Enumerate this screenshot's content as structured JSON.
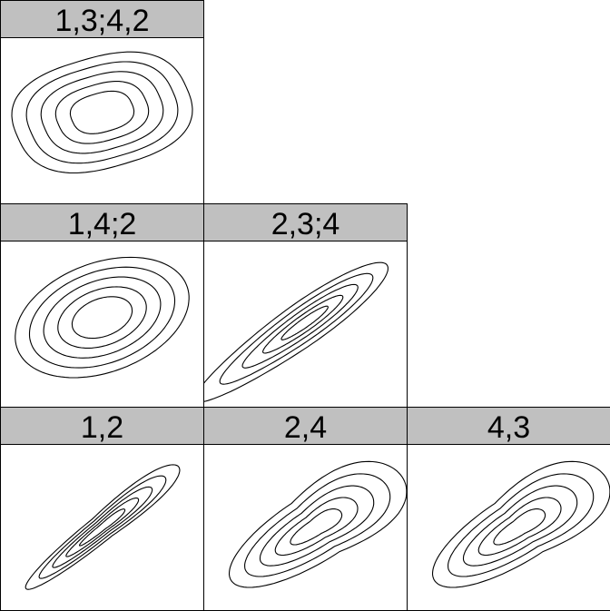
{
  "colors": {
    "strip": "#c0c0c0",
    "border": "#000000",
    "panel_background": "#ffffff",
    "contour": "#000000"
  },
  "chart_data": {
    "type": "contour",
    "arrangement": "lower-triangular panel grid, 3 rows, contours of bivariate densities",
    "contour_levels_per_panel": 5,
    "panels": [
      {
        "label": "1,3;4,2",
        "row": 1,
        "col": 1,
        "shape": "rounded-square",
        "correlation": 0.3,
        "tail": "symmetric"
      },
      {
        "label": "1,4;2",
        "row": 2,
        "col": 1,
        "shape": "ellipse",
        "correlation": 0.4,
        "tail": "symmetric"
      },
      {
        "label": "2,3;4",
        "row": 2,
        "col": 2,
        "shape": "narrow-ellipse",
        "correlation": 0.85,
        "tail": "lower"
      },
      {
        "label": "1,2",
        "row": 3,
        "col": 1,
        "shape": "teardrop",
        "correlation": 0.9,
        "tail": "lower"
      },
      {
        "label": "2,4",
        "row": 3,
        "col": 2,
        "shape": "teardrop",
        "correlation": 0.6,
        "tail": "lower"
      },
      {
        "label": "4,3",
        "row": 3,
        "col": 3,
        "shape": "teardrop",
        "correlation": 0.6,
        "tail": "lower"
      }
    ]
  }
}
